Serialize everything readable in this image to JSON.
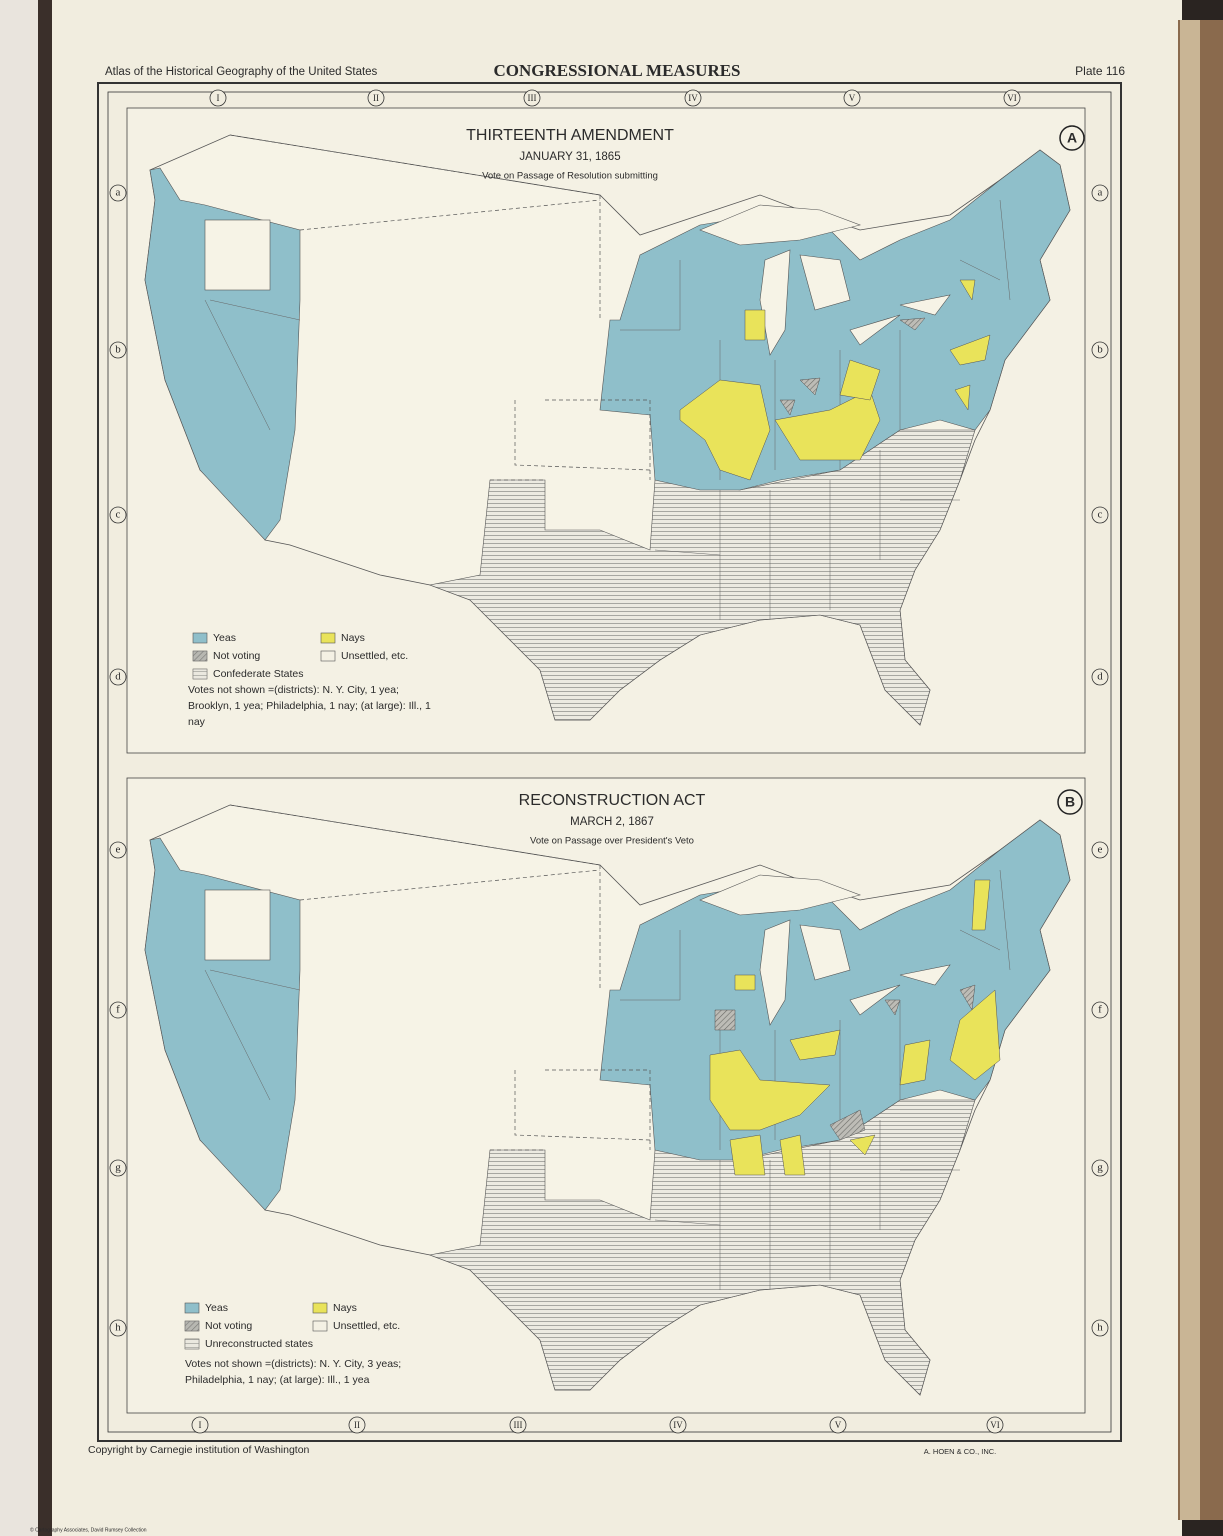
{
  "header": {
    "atlas": "Atlas of the Historical Geography of the United States",
    "title": "CONGRESSIONAL MEASURES",
    "plate": "Plate 116"
  },
  "grid": {
    "columns": [
      "I",
      "II",
      "III",
      "IV",
      "V",
      "VI"
    ],
    "rows": [
      "a",
      "b",
      "c",
      "d",
      "e",
      "f",
      "g",
      "h"
    ]
  },
  "maps": [
    {
      "letter": "A",
      "title": "THIRTEENTH AMENDMENT",
      "date": "JANUARY 31, 1865",
      "subtitle": "Vote on Passage of Resolution submitting",
      "legend": [
        {
          "label": "Yeas",
          "color": "#8fbfca"
        },
        {
          "label": "Nays",
          "color": "#e9e35a"
        },
        {
          "label": "Not voting",
          "color": "#a9a9a4"
        },
        {
          "label": "Unsettled, etc.",
          "color": "#f4f1e4"
        },
        {
          "label": "Confederate States",
          "color": "#e4e2da"
        }
      ],
      "note": "Votes not shown =(districts): N. Y. City, 1 yea; Brooklyn, 1 yea; Philadelphia, 1 nay; (at large): Ill., 1 nay"
    },
    {
      "letter": "B",
      "title": "RECONSTRUCTION ACT",
      "date": "MARCH 2, 1867",
      "subtitle": "Vote on Passage over President's Veto",
      "legend": [
        {
          "label": "Yeas",
          "color": "#8fbfca"
        },
        {
          "label": "Nays",
          "color": "#e9e35a"
        },
        {
          "label": "Not voting",
          "color": "#a9a9a4"
        },
        {
          "label": "Unsettled, etc.",
          "color": "#f4f1e4"
        },
        {
          "label": "Unreconstructed states",
          "color": "#e4e2da"
        }
      ],
      "note": "Votes not shown =(districts): N. Y. City, 3 yeas; Philadelphia, 1 nay; (at large): Ill., 1 yea"
    }
  ],
  "footer": {
    "copyright": "Copyright by Carnegie institution of Washington",
    "printer": "A. HOEN & CO., INC.",
    "credit": "© Cartography Associates, David Rumsey Collection"
  }
}
